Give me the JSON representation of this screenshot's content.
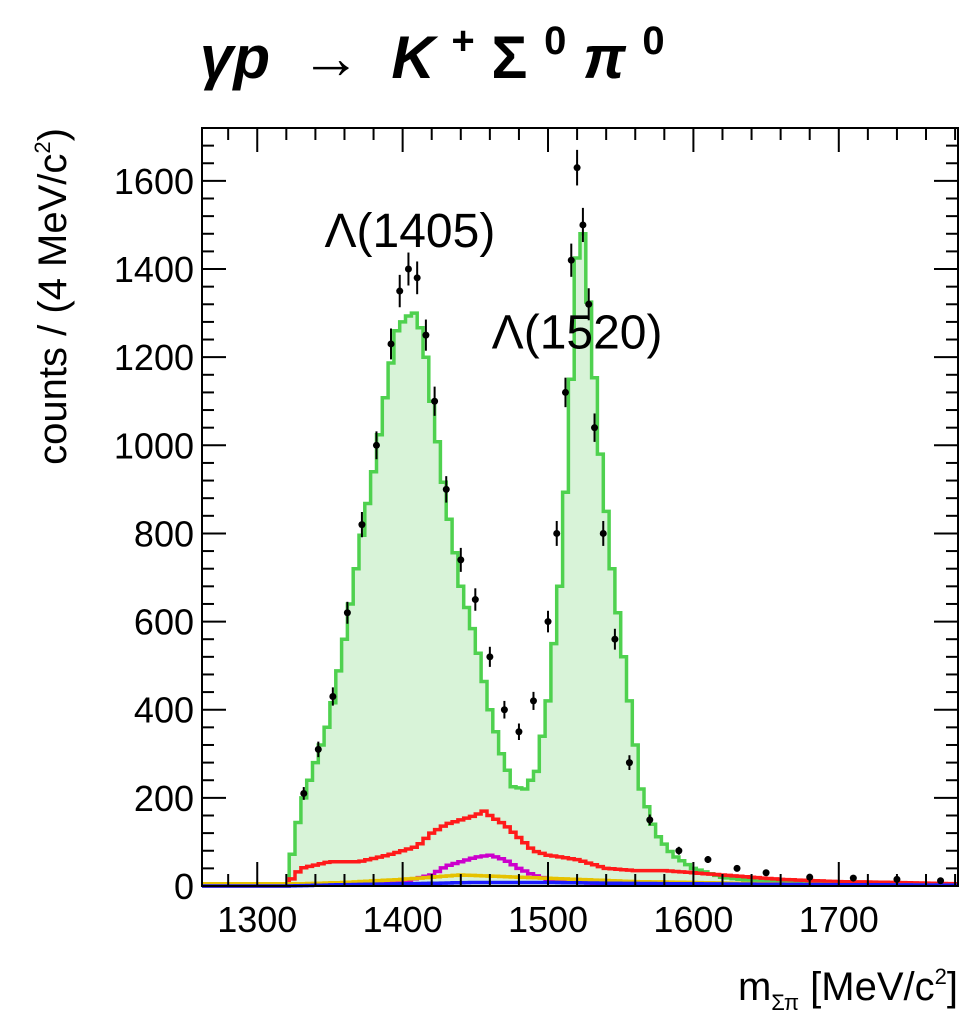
{
  "chart_data": {
    "type": "histogram",
    "title_parts": [
      "γp",
      "→",
      "K",
      "+",
      "Σ",
      "0",
      "π",
      "0"
    ],
    "xlabel_parts": [
      "m",
      "Σπ",
      " [MeV/c",
      "2",
      "]"
    ],
    "ylabel_parts": [
      "counts / (4 MeV/c",
      "2",
      ")"
    ],
    "xlim": [
      1262,
      1782
    ],
    "ylim": [
      0,
      1720
    ],
    "bin_width": 4,
    "x_ticks": [
      1300,
      1400,
      1500,
      1600,
      1700
    ],
    "y_ticks": [
      0,
      200,
      400,
      600,
      800,
      1000,
      1200,
      1400,
      1600
    ],
    "annotations": [
      {
        "text": "Λ(1405)",
        "x": 1405,
        "y": 1450
      },
      {
        "text": "Λ(1520)",
        "x": 1520,
        "y": 1220
      }
    ],
    "data_points": {
      "x": [
        1332,
        1342,
        1352,
        1362,
        1372,
        1382,
        1392,
        1398,
        1404,
        1410,
        1416,
        1422,
        1430,
        1440,
        1450,
        1460,
        1470,
        1480,
        1490,
        1500,
        1506,
        1512,
        1516,
        1520,
        1524,
        1528,
        1532,
        1538,
        1546,
        1556,
        1570,
        1590,
        1610,
        1630,
        1650,
        1680,
        1710,
        1740,
        1770
      ],
      "y": [
        210,
        310,
        430,
        620,
        820,
        1000,
        1230,
        1350,
        1400,
        1380,
        1250,
        1100,
        900,
        740,
        650,
        520,
        400,
        350,
        420,
        600,
        800,
        1120,
        1420,
        1630,
        1500,
        1320,
        1040,
        800,
        560,
        280,
        150,
        80,
        60,
        40,
        30,
        20,
        18,
        15,
        12
      ]
    },
    "series": [
      {
        "name": "",
        "color": "#4fd14f",
        "fill": "#d8f3d8",
        "x": [
          1262,
          1320,
          1330,
          1340,
          1350,
          1360,
          1370,
          1380,
          1390,
          1396,
          1402,
          1408,
          1414,
          1420,
          1430,
          1440,
          1450,
          1460,
          1468,
          1476,
          1484,
          1492,
          1500,
          1508,
          1514,
          1518,
          1522,
          1526,
          1530,
          1536,
          1544,
          1554,
          1564,
          1574,
          1586,
          1600,
          1620,
          1640,
          1660,
          1700,
          1740,
          1782
        ],
        "y": [
          0,
          0,
          180,
          280,
          380,
          560,
          760,
          940,
          1150,
          1260,
          1290,
          1300,
          1250,
          1100,
          870,
          680,
          560,
          400,
          300,
          225,
          220,
          260,
          420,
          680,
          1000,
          1300,
          1550,
          1410,
          1240,
          980,
          720,
          470,
          220,
          120,
          70,
          40,
          20,
          12,
          8,
          5,
          3,
          2
        ]
      },
      {
        "name": "",
        "color": "#ff1a1a",
        "x": [
          1262,
          1320,
          1330,
          1350,
          1370,
          1390,
          1410,
          1420,
          1430,
          1440,
          1450,
          1456,
          1462,
          1470,
          1480,
          1490,
          1500,
          1520,
          1540,
          1560,
          1580,
          1600,
          1620,
          1640,
          1660,
          1700,
          1740,
          1782
        ],
        "y": [
          0,
          0,
          40,
          55,
          55,
          70,
          90,
          120,
          140,
          150,
          160,
          170,
          155,
          140,
          110,
          80,
          70,
          60,
          40,
          35,
          35,
          30,
          25,
          20,
          15,
          10,
          8,
          5
        ]
      },
      {
        "name": "",
        "color": "#cc00cc",
        "x": [
          1380,
          1400,
          1420,
          1430,
          1440,
          1450,
          1460,
          1470,
          1480,
          1490,
          1500,
          1520,
          1540,
          1560
        ],
        "y": [
          5,
          10,
          25,
          45,
          55,
          65,
          70,
          60,
          40,
          25,
          15,
          8,
          5,
          2
        ]
      },
      {
        "name": "",
        "color": "#e6c200",
        "x": [
          1330,
          1360,
          1400,
          1440,
          1480,
          1520,
          1560,
          1600,
          1650,
          1700,
          1782
        ],
        "y": [
          5,
          8,
          15,
          25,
          20,
          15,
          10,
          8,
          5,
          3,
          2
        ]
      },
      {
        "name": "",
        "color": "#1a1aff",
        "x": [
          1262,
          1320,
          1360,
          1400,
          1450,
          1500,
          1550,
          1600,
          1650,
          1700,
          1782
        ],
        "y": [
          0,
          0,
          3,
          5,
          8,
          8,
          6,
          5,
          4,
          3,
          2
        ]
      }
    ]
  }
}
